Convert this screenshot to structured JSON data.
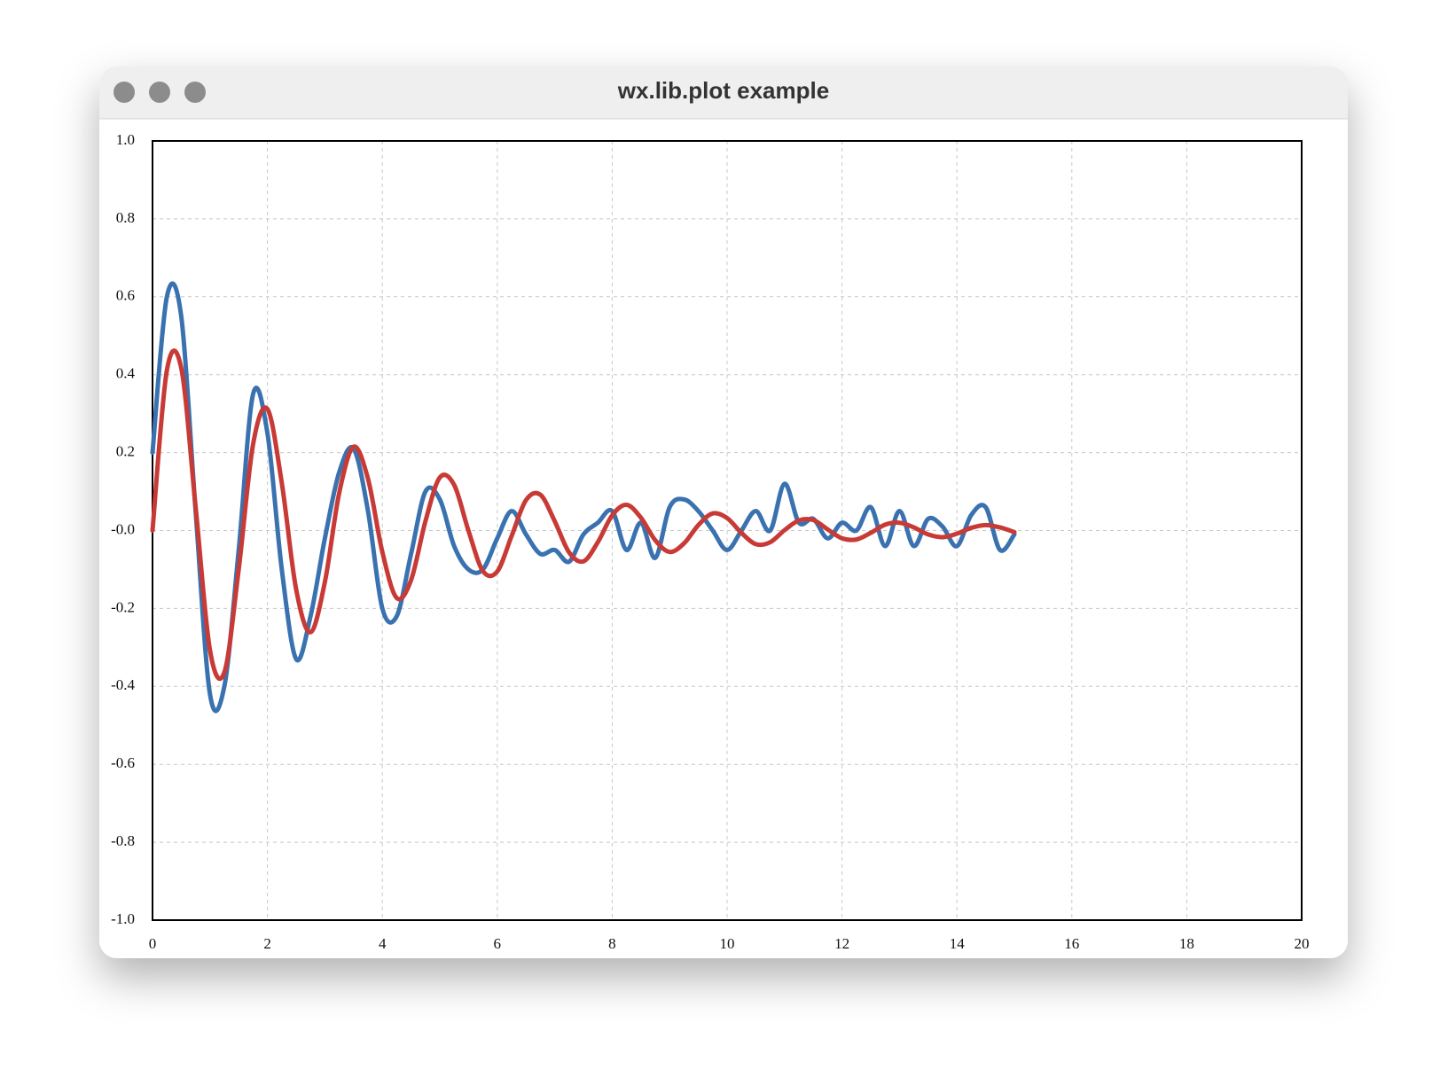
{
  "window_title": "wx.lib.plot example",
  "chart_data": {
    "type": "line",
    "x": [
      0,
      0.25,
      0.5,
      0.75,
      1,
      1.25,
      1.5,
      1.75,
      2,
      2.25,
      2.5,
      2.75,
      3,
      3.25,
      3.5,
      3.75,
      4,
      4.25,
      4.5,
      4.75,
      5,
      5.25,
      5.5,
      5.75,
      6,
      6.25,
      6.5,
      6.75,
      7,
      7.25,
      7.5,
      7.75,
      8,
      8.25,
      8.5,
      8.75,
      9,
      9.25,
      9.5,
      9.75,
      10,
      10.25,
      10.5,
      10.75,
      11,
      11.25,
      11.5,
      11.75,
      12,
      12.25,
      12.5,
      12.75,
      13,
      13.25,
      13.5,
      13.75,
      14,
      14.25,
      14.5,
      14.75,
      15
    ],
    "series": [
      {
        "color": "#3a72b0",
        "values": [
          0.2,
          0.6,
          0.55,
          0.05,
          -0.42,
          -0.4,
          -0.05,
          0.35,
          0.25,
          -0.1,
          -0.33,
          -0.22,
          -0.02,
          0.15,
          0.21,
          0.05,
          -0.2,
          -0.22,
          -0.06,
          0.1,
          0.08,
          -0.04,
          -0.1,
          -0.1,
          -0.02,
          0.05,
          -0.01,
          -0.06,
          -0.05,
          -0.08,
          -0.01,
          0.02,
          0.05,
          -0.05,
          0.02,
          -0.07,
          0.06,
          0.08,
          0.05,
          0,
          -0.05,
          0,
          0.05,
          0,
          0.12,
          0.02,
          0.03,
          -0.02,
          0.02,
          0,
          0.06,
          -0.04,
          0.05,
          -0.04,
          0.03,
          0.01,
          -0.04,
          0.04,
          0.06,
          -0.05,
          -0.01
        ]
      },
      {
        "color": "#c83a35",
        "values": [
          0,
          0.411,
          0.417,
          0.061,
          -0.307,
          -0.364,
          -0.1,
          0.221,
          0.312,
          0.122,
          -0.151,
          -0.261,
          -0.132,
          0.097,
          0.215,
          0.133,
          -0.055,
          -0.173,
          -0.127,
          0.024,
          0.136,
          0.117,
          -0.001,
          -0.104,
          -0.105,
          -0.014,
          0.078,
          0.092,
          0.024,
          -0.056,
          -0.079,
          -0.03,
          0.039,
          0.066,
          0.033,
          -0.025,
          -0.055,
          -0.033,
          0.014,
          0.044,
          0.032,
          -0.006,
          -0.035,
          -0.03,
          0.001,
          0.026,
          0.027,
          0.003,
          -0.02,
          -0.023,
          -0.006,
          0.015,
          0.02,
          0.008,
          -0.01,
          -0.017,
          -0.008,
          0.007,
          0.014,
          0.008,
          -0.004
        ]
      }
    ],
    "xlim": [
      0,
      20
    ],
    "xticks": [
      0,
      2,
      4,
      6,
      8,
      10,
      12,
      14,
      16,
      18,
      20
    ],
    "ylim": [
      -1,
      1
    ],
    "yticks": [
      {
        "value": -1,
        "label": "-1.0"
      },
      {
        "value": -0.8,
        "label": "-0.8"
      },
      {
        "value": -0.6,
        "label": "-0.6"
      },
      {
        "value": -0.4,
        "label": "-0.4"
      },
      {
        "value": -0.2,
        "label": "-0.2"
      },
      {
        "value": 0,
        "label": "-0.0"
      },
      {
        "value": 0.2,
        "label": "0.2"
      },
      {
        "value": 0.4,
        "label": "0.4"
      },
      {
        "value": 0.6,
        "label": "0.6"
      },
      {
        "value": 0.8,
        "label": "0.8"
      },
      {
        "value": 1,
        "label": "1.0"
      }
    ],
    "grid": true
  }
}
